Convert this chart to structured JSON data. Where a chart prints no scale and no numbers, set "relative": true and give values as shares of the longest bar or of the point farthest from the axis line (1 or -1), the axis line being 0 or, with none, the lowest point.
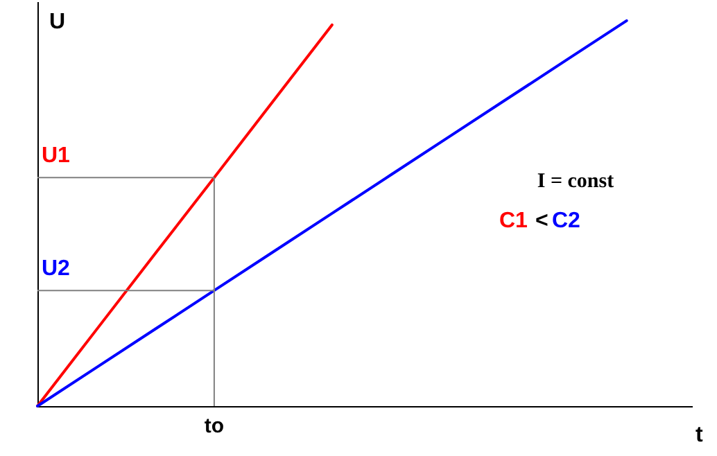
{
  "chart_data": {
    "type": "line",
    "relative": true,
    "xlabel": "t",
    "ylabel": "U",
    "categories": [
      null,
      null,
      null,
      null,
      null,
      null,
      null,
      null,
      null,
      null,
      null
    ],
    "series": [
      {
        "name": "C1",
        "color": "#ff0000",
        "values": [
          0,
          0.198,
          0.396,
          0.593,
          0.791,
          0.989,
          null,
          null,
          null,
          null,
          null
        ]
      },
      {
        "name": "C2",
        "color": "#0000ff",
        "values": [
          0,
          0.1,
          0.2,
          0.3,
          0.4,
          0.5,
          0.6,
          0.7,
          0.8,
          0.9,
          1
        ]
      }
    ],
    "ref_lines": [
      {
        "axis": "y",
        "value": 0.593,
        "label": "U1",
        "color": "#808080"
      },
      {
        "axis": "y",
        "value": 0.3,
        "label": "U2",
        "color": "#808080"
      }
    ],
    "annotations": [
      "I = const",
      "<",
      "to"
    ]
  }
}
